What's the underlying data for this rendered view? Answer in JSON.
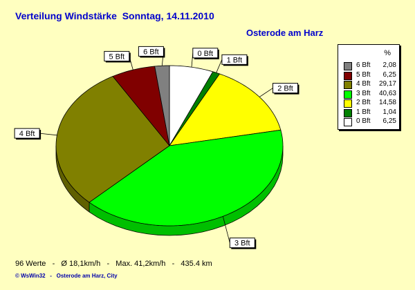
{
  "title": "Verteilung Windstärke  Sonntag, 14.11.2010",
  "location": "Osterode am Harz",
  "stats": "96 Werte   -   Ø 18,1km/h   -   Max. 41,2km/h   -   435.4 km",
  "footer": "© WsWin32   -   Osterode am Harz, City",
  "legend": {
    "header": "%"
  },
  "chart_data": {
    "type": "pie",
    "title": "Verteilung Windstärke  Sonntag, 14.11.2010",
    "legend_position": "right",
    "slices": [
      {
        "label": "0 Bft",
        "value": 6.25,
        "value_text": "6,25",
        "color": "#ffffff"
      },
      {
        "label": "1 Bft",
        "value": 1.04,
        "value_text": "1,04",
        "color": "#008000"
      },
      {
        "label": "2 Bft",
        "value": 14.58,
        "value_text": "14,58",
        "color": "#ffff00"
      },
      {
        "label": "3 Bft",
        "value": 40.63,
        "value_text": "40,63",
        "color": "#00ff00"
      },
      {
        "label": "4 Bft",
        "value": 29.17,
        "value_text": "29,17",
        "color": "#808000"
      },
      {
        "label": "5 Bft",
        "value": 6.25,
        "value_text": "6,25",
        "color": "#800000"
      },
      {
        "label": "6 Bft",
        "value": 2.08,
        "value_text": "2,08",
        "color": "#808080"
      }
    ],
    "legend_order": [
      "6 Bft",
      "5 Bft",
      "4 Bft",
      "3 Bft",
      "2 Bft",
      "1 Bft",
      "0 Bft"
    ]
  }
}
